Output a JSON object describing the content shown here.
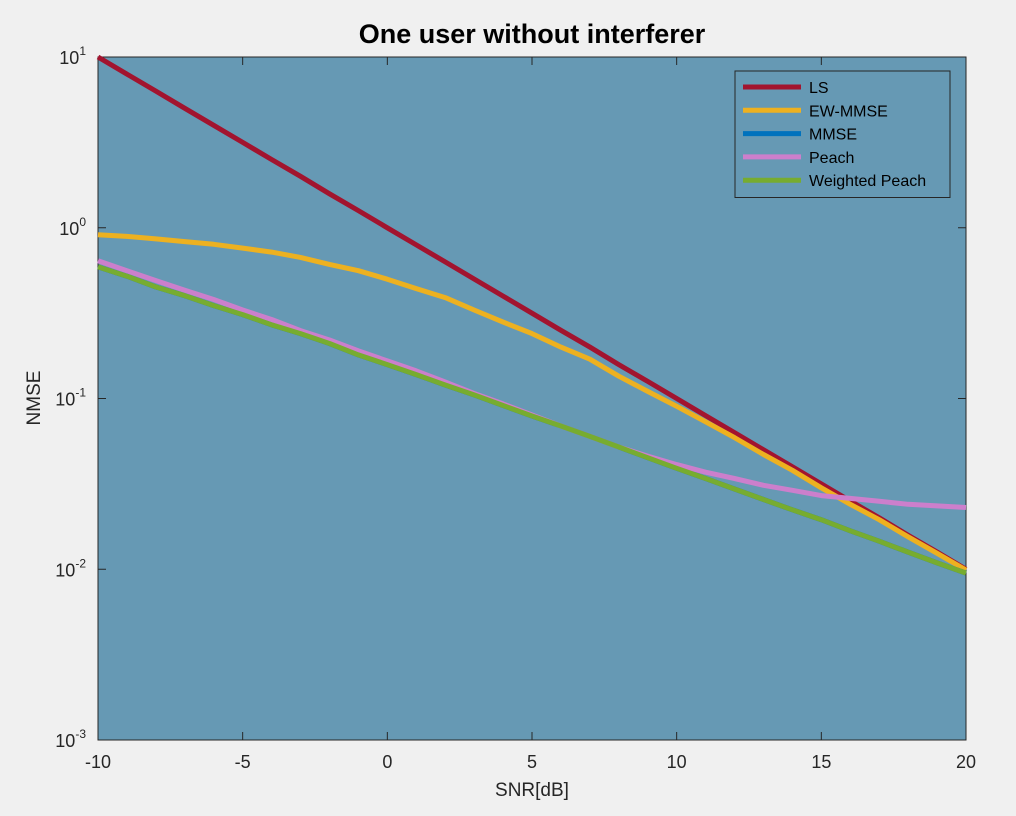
{
  "chart_data": {
    "type": "line",
    "title": "One user without interferer",
    "xlabel": "SNR[dB]",
    "ylabel": "NMSE",
    "xlim": [
      -10,
      20
    ],
    "ylim": [
      0.001,
      10
    ],
    "yscale": "log",
    "xticks": [
      -10,
      -5,
      0,
      5,
      10,
      15,
      20
    ],
    "ytick_labels": [
      {
        "base": "10",
        "exp": "1",
        "value": 10
      },
      {
        "base": "10",
        "exp": "0",
        "value": 1
      },
      {
        "base": "10",
        "exp": "-1",
        "value": 0.1
      },
      {
        "base": "10",
        "exp": "-2",
        "value": 0.01
      },
      {
        "base": "10",
        "exp": "-3",
        "value": 0.001
      }
    ],
    "grid": false,
    "legend_position": "top-right",
    "x": [
      -10,
      -9,
      -8,
      -7,
      -6,
      -5,
      -4,
      -3,
      -2,
      -1,
      0,
      1,
      2,
      3,
      4,
      5,
      6,
      7,
      8,
      9,
      10,
      11,
      12,
      13,
      14,
      15,
      16,
      17,
      18,
      19,
      20
    ],
    "series": [
      {
        "name": "LS",
        "color": "#a2142f",
        "values": [
          10,
          7.94,
          6.31,
          5.01,
          3.98,
          3.16,
          2.51,
          2.0,
          1.58,
          1.26,
          1.0,
          0.794,
          0.631,
          0.501,
          0.398,
          0.316,
          0.251,
          0.2,
          0.158,
          0.126,
          0.1,
          0.0794,
          0.0631,
          0.0501,
          0.0398,
          0.0316,
          0.0251,
          0.02,
          0.0158,
          0.0126,
          0.01
        ]
      },
      {
        "name": "EW-MMSE",
        "color": "#edb120",
        "values": [
          0.91,
          0.89,
          0.86,
          0.83,
          0.8,
          0.76,
          0.72,
          0.67,
          0.61,
          0.56,
          0.5,
          0.44,
          0.39,
          0.33,
          0.28,
          0.24,
          0.2,
          0.17,
          0.135,
          0.11,
          0.09,
          0.073,
          0.059,
          0.047,
          0.038,
          0.03,
          0.024,
          0.0195,
          0.0155,
          0.0124,
          0.0099
        ]
      },
      {
        "name": "MMSE",
        "color": "#0072bd",
        "values": [
          0.59,
          0.52,
          0.45,
          0.4,
          0.35,
          0.31,
          0.27,
          0.24,
          0.21,
          0.18,
          0.158,
          0.138,
          0.12,
          0.105,
          0.091,
          0.079,
          0.069,
          0.06,
          0.052,
          0.045,
          0.039,
          0.034,
          0.0295,
          0.0256,
          0.0223,
          0.0195,
          0.0168,
          0.0146,
          0.0126,
          0.0109,
          0.0095
        ]
      },
      {
        "name": "Peach",
        "color": "#cc7fcc",
        "values": [
          0.64,
          0.56,
          0.49,
          0.43,
          0.38,
          0.33,
          0.29,
          0.25,
          0.22,
          0.19,
          0.166,
          0.145,
          0.125,
          0.107,
          0.093,
          0.08,
          0.069,
          0.06,
          0.052,
          0.046,
          0.041,
          0.037,
          0.034,
          0.031,
          0.029,
          0.027,
          0.026,
          0.025,
          0.024,
          0.0235,
          0.023
        ]
      },
      {
        "name": "Weighted Peach",
        "color": "#77ac30",
        "values": [
          0.59,
          0.52,
          0.45,
          0.4,
          0.35,
          0.31,
          0.27,
          0.24,
          0.21,
          0.18,
          0.158,
          0.138,
          0.12,
          0.105,
          0.091,
          0.079,
          0.069,
          0.06,
          0.052,
          0.045,
          0.039,
          0.034,
          0.0295,
          0.0256,
          0.0223,
          0.0195,
          0.0168,
          0.0146,
          0.0126,
          0.0109,
          0.0095
        ]
      }
    ]
  }
}
